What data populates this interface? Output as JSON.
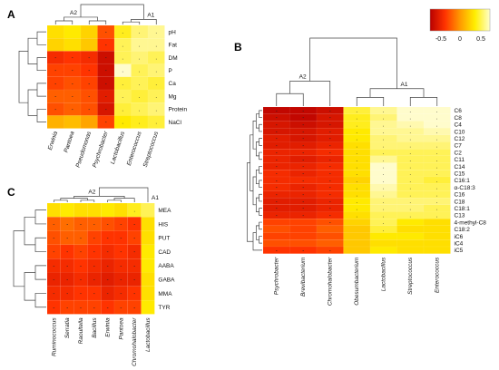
{
  "colors": {
    "low": "#cc1100",
    "mid1": "#ff4400",
    "mid2": "#ff9900",
    "high1": "#ffee00",
    "high2": "#ffff99",
    "white": "#ffffee"
  },
  "legend": {
    "ticks": [
      "-0.5",
      "0",
      "0.5"
    ]
  },
  "chart_data": [
    {
      "panel": "A",
      "type": "heatmap",
      "rows": [
        "pH",
        "Fat",
        "DM",
        "P",
        "Ca",
        "Mg",
        "Protein",
        "NaCl"
      ],
      "columns": [
        "Erwinia",
        "Pantoea",
        "Pseudomonas",
        "Psychrobacter",
        "Lactobacillus",
        "Enterococcus",
        "Streptococcus"
      ],
      "cluster_labels": [
        "A2",
        "A1"
      ],
      "values": [
        [
          0.3,
          0.35,
          0.25,
          -0.25,
          0.4,
          0.55,
          0.6
        ],
        [
          0.25,
          0.3,
          0.2,
          -0.35,
          0.5,
          0.6,
          0.6
        ],
        [
          -0.4,
          -0.35,
          -0.4,
          -0.6,
          0.5,
          0.55,
          0.5
        ],
        [
          -0.3,
          -0.3,
          -0.35,
          -0.6,
          0.7,
          0.5,
          0.55
        ],
        [
          -0.3,
          -0.25,
          -0.3,
          -0.6,
          0.45,
          0.5,
          0.45
        ],
        [
          -0.2,
          -0.2,
          -0.25,
          -0.5,
          0.5,
          0.45,
          0.5
        ],
        [
          -0.25,
          -0.2,
          -0.25,
          -0.55,
          0.45,
          0.5,
          0.55
        ],
        [
          0.1,
          0.15,
          0.05,
          -0.3,
          0.35,
          0.4,
          0.45
        ]
      ],
      "significant": [
        [
          0,
          0,
          0,
          1,
          1,
          1,
          1
        ],
        [
          0,
          0,
          0,
          1,
          1,
          1,
          1
        ],
        [
          1,
          1,
          1,
          1,
          1,
          1,
          1
        ],
        [
          1,
          1,
          1,
          1,
          1,
          1,
          1
        ],
        [
          1,
          1,
          1,
          1,
          1,
          1,
          1
        ],
        [
          1,
          1,
          1,
          1,
          1,
          1,
          1
        ],
        [
          1,
          1,
          1,
          1,
          1,
          1,
          1
        ],
        [
          0,
          0,
          0,
          1,
          1,
          1,
          1
        ]
      ]
    },
    {
      "panel": "B",
      "type": "heatmap",
      "rows": [
        "C6",
        "C8",
        "C4",
        "C10",
        "C12",
        "C7",
        "C2",
        "C11",
        "C14",
        "C15",
        "C16:1",
        "α-C18:3",
        "C16",
        "C18",
        "C18:1",
        "C13",
        "4-methyl-C8",
        "C18:2",
        "iC6",
        "iC4",
        "iC5"
      ],
      "columns": [
        "Psychrobacter",
        "Brevibacterium",
        "Chromohalobacter",
        "Obesumbacterium",
        "Lactobacillus",
        "Streptococcus",
        "Enterococcus"
      ],
      "cluster_labels": [
        "A2",
        "A1"
      ],
      "values": [
        [
          -0.65,
          -0.65,
          -0.6,
          0.45,
          0.6,
          0.7,
          0.8
        ],
        [
          -0.6,
          -0.65,
          -0.55,
          0.4,
          0.55,
          0.7,
          0.75
        ],
        [
          -0.55,
          -0.6,
          -0.55,
          0.4,
          0.6,
          0.65,
          0.7
        ],
        [
          -0.55,
          -0.55,
          -0.5,
          0.35,
          0.6,
          0.6,
          0.65
        ],
        [
          -0.5,
          -0.55,
          -0.5,
          0.35,
          0.55,
          0.6,
          0.6
        ],
        [
          -0.5,
          -0.5,
          -0.45,
          0.3,
          0.55,
          0.55,
          0.55
        ],
        [
          -0.45,
          -0.45,
          -0.4,
          0.3,
          0.5,
          0.5,
          0.5
        ],
        [
          -0.45,
          -0.5,
          -0.45,
          0.3,
          0.6,
          0.5,
          0.5
        ],
        [
          -0.45,
          -0.45,
          -0.4,
          0.3,
          0.7,
          0.5,
          0.5
        ],
        [
          -0.4,
          -0.45,
          -0.4,
          0.3,
          0.75,
          0.5,
          0.5
        ],
        [
          -0.4,
          -0.4,
          -0.4,
          0.25,
          0.7,
          0.5,
          0.45
        ],
        [
          -0.4,
          -0.45,
          -0.4,
          0.3,
          0.65,
          0.5,
          0.5
        ],
        [
          -0.45,
          -0.45,
          -0.4,
          0.3,
          0.6,
          0.5,
          0.5
        ],
        [
          -0.5,
          -0.5,
          -0.45,
          0.35,
          0.55,
          0.55,
          0.55
        ],
        [
          -0.5,
          -0.5,
          -0.45,
          0.35,
          0.55,
          0.55,
          0.5
        ],
        [
          -0.45,
          -0.45,
          -0.4,
          0.3,
          0.5,
          0.5,
          0.5
        ],
        [
          -0.3,
          -0.3,
          -0.25,
          0.25,
          0.5,
          0.35,
          0.3
        ],
        [
          -0.25,
          -0.3,
          -0.2,
          0.2,
          0.45,
          0.3,
          0.3
        ],
        [
          -0.3,
          -0.3,
          -0.25,
          0.2,
          0.35,
          0.35,
          0.3
        ],
        [
          -0.25,
          -0.25,
          -0.2,
          0.2,
          0.3,
          0.3,
          0.3
        ],
        [
          -0.35,
          -0.35,
          -0.3,
          0.2,
          0.35,
          0.3,
          0.3
        ]
      ],
      "significant": [
        [
          1,
          1,
          1,
          1,
          1,
          1,
          1
        ],
        [
          1,
          1,
          1,
          1,
          1,
          1,
          1
        ],
        [
          1,
          1,
          1,
          1,
          1,
          1,
          1
        ],
        [
          1,
          1,
          1,
          1,
          1,
          1,
          1
        ],
        [
          1,
          1,
          1,
          1,
          1,
          1,
          1
        ],
        [
          1,
          1,
          1,
          1,
          1,
          1,
          1
        ],
        [
          1,
          1,
          1,
          1,
          1,
          1,
          1
        ],
        [
          1,
          1,
          1,
          1,
          1,
          1,
          1
        ],
        [
          1,
          1,
          1,
          1,
          1,
          1,
          1
        ],
        [
          1,
          1,
          1,
          1,
          1,
          1,
          1
        ],
        [
          1,
          1,
          1,
          1,
          1,
          1,
          1
        ],
        [
          1,
          1,
          1,
          1,
          1,
          1,
          1
        ],
        [
          1,
          1,
          1,
          1,
          1,
          1,
          1
        ],
        [
          1,
          1,
          1,
          1,
          1,
          1,
          1
        ],
        [
          1,
          1,
          1,
          1,
          1,
          1,
          1
        ],
        [
          1,
          1,
          1,
          1,
          1,
          1,
          1
        ],
        [
          0,
          0,
          1,
          0,
          1,
          0,
          0
        ],
        [
          0,
          0,
          0,
          0,
          1,
          0,
          0
        ],
        [
          0,
          0,
          0,
          0,
          0,
          0,
          0
        ],
        [
          0,
          0,
          0,
          0,
          0,
          0,
          0
        ],
        [
          1,
          1,
          1,
          0,
          0,
          0,
          0
        ]
      ]
    },
    {
      "panel": "C",
      "type": "heatmap",
      "rows": [
        "MEA",
        "HIS",
        "PUT",
        "CAD",
        "AABA",
        "GABA",
        "MMA",
        "TYR"
      ],
      "columns": [
        "Ruminococcus",
        "Serratia",
        "Raoultella",
        "Bacillus",
        "Erwinia",
        "Pantoea",
        "Chromohalobacter",
        "Lactobacillus"
      ],
      "cluster_labels": [
        "A2",
        "A1"
      ],
      "values": [
        [
          0.3,
          0.35,
          0.3,
          0.3,
          0.35,
          0.3,
          0.4,
          0.5
        ],
        [
          -0.2,
          -0.15,
          -0.2,
          -0.2,
          -0.25,
          -0.3,
          -0.35,
          0.3
        ],
        [
          -0.25,
          -0.2,
          -0.2,
          -0.3,
          -0.35,
          -0.35,
          -0.3,
          0.3
        ],
        [
          -0.3,
          -0.35,
          -0.3,
          -0.35,
          -0.4,
          -0.35,
          -0.4,
          0.35
        ],
        [
          -0.4,
          -0.4,
          -0.35,
          -0.4,
          -0.45,
          -0.4,
          -0.4,
          0.35
        ],
        [
          -0.45,
          -0.45,
          -0.4,
          -0.45,
          -0.5,
          -0.45,
          -0.45,
          0.3
        ],
        [
          -0.4,
          -0.4,
          -0.35,
          -0.35,
          -0.45,
          -0.4,
          -0.35,
          0.3
        ],
        [
          -0.35,
          -0.3,
          -0.3,
          -0.3,
          -0.35,
          -0.3,
          -0.3,
          0.35
        ]
      ],
      "significant": [
        [
          0,
          0,
          0,
          0,
          0,
          0,
          1,
          0
        ],
        [
          1,
          1,
          1,
          1,
          1,
          1,
          1,
          0
        ],
        [
          1,
          1,
          1,
          1,
          1,
          1,
          1,
          0
        ],
        [
          1,
          1,
          1,
          1,
          1,
          1,
          1,
          0
        ],
        [
          1,
          1,
          1,
          1,
          1,
          1,
          1,
          0
        ],
        [
          1,
          1,
          1,
          1,
          1,
          1,
          1,
          0
        ],
        [
          1,
          1,
          1,
          1,
          1,
          1,
          1,
          0
        ],
        [
          1,
          1,
          1,
          1,
          1,
          1,
          1,
          0
        ]
      ]
    }
  ]
}
